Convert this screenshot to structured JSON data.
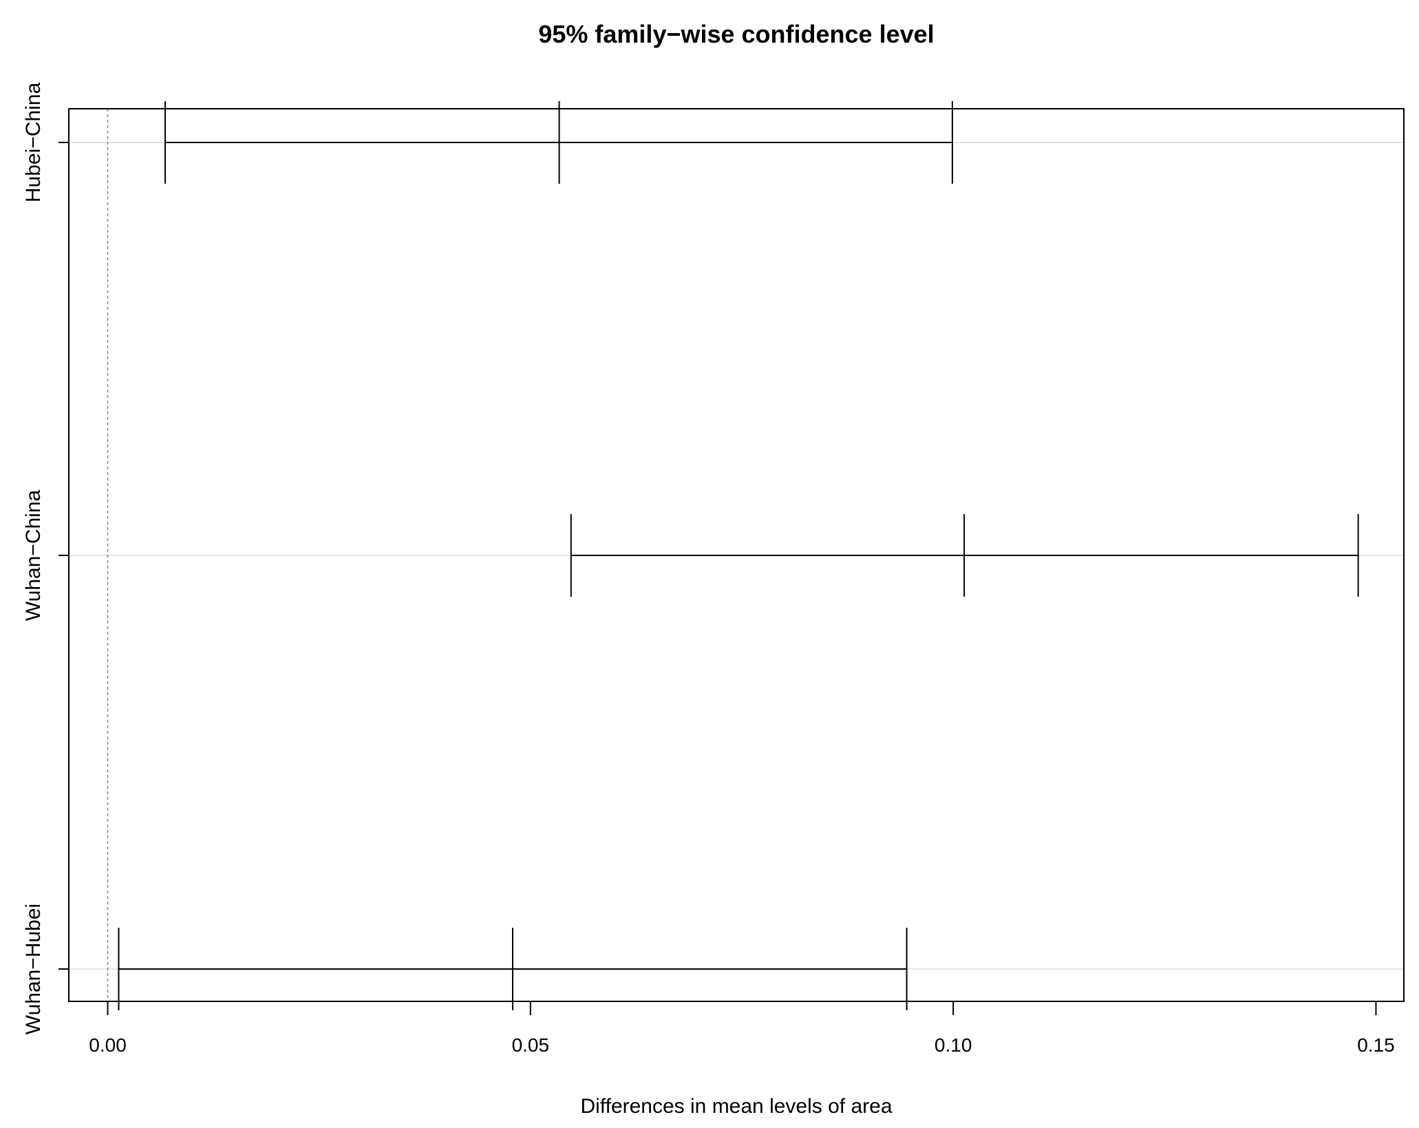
{
  "chart_data": {
    "type": "interval",
    "title": "95% family−wise confidence level",
    "xlabel": "Differences in mean levels of area",
    "ylabel": "",
    "xlim": [
      -0.0046,
      0.1533
    ],
    "x_ticks": [
      0.0,
      0.05,
      0.1,
      0.15
    ],
    "x_tick_labels": [
      "0.00",
      "0.05",
      "0.10",
      "0.15"
    ],
    "reference_line": 0,
    "grid": "horizontal at each comparison",
    "comparisons": [
      {
        "label": "Hubei−China",
        "lower": 0.0068,
        "estimate": 0.0534,
        "upper": 0.0999
      },
      {
        "label": "Wuhan−China",
        "lower": 0.0548,
        "estimate": 0.1013,
        "upper": 0.1479
      },
      {
        "label": "Wuhan−Hubei",
        "lower": 0.0013,
        "estimate": 0.0479,
        "upper": 0.0945
      }
    ],
    "colors": {
      "line": "#000000",
      "grid": "#d3d3d3",
      "reference": "#808080"
    }
  }
}
